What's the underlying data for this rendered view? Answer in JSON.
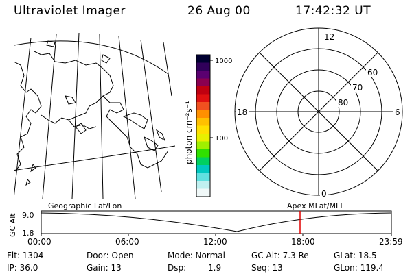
{
  "header": {
    "instrument": "Ultraviolet Imager",
    "date": "26 Aug 00",
    "time": "17:42:32 UT"
  },
  "colorbar": {
    "unit_label": "photon cm⁻²s⁻¹",
    "tick_1000": "1000",
    "tick_100": "100",
    "colors": [
      "#000030",
      "#30005a",
      "#5a0070",
      "#8a0050",
      "#c00010",
      "#e01010",
      "#f05020",
      "#ff9000",
      "#ffc000",
      "#ffe000",
      "#e8f000",
      "#a0f000",
      "#30e000",
      "#00d060",
      "#00c8c0",
      "#60e0e0",
      "#c0f0f0",
      "#f0f8f8"
    ]
  },
  "polar_plot": {
    "mlt_12": "12",
    "mlt_18": "18",
    "mlt_6": "6",
    "mlt_0": "0",
    "lat_60": "60",
    "lat_70": "70",
    "lat_80": "80"
  },
  "timeline": {
    "yaxis_label": "GC Alt",
    "ytick_top": "9.0",
    "ytick_bottom": "1.8",
    "left_label": "Geographic Lat/Lon",
    "right_label": "Apex MLat/MLT",
    "xticks": [
      "00:00",
      "06:00",
      "12:00",
      "18:00",
      "23:59"
    ],
    "current_marker_color": "#e00000"
  },
  "status": {
    "flt": "Flt: 1304",
    "ip": "IP: 36.0",
    "door": "Door: Open",
    "gain": "Gain: 13",
    "mode": "Mode: Normal",
    "dsp_label": "Dsp:",
    "dsp_value": "1.9",
    "gc_alt": "GC Alt: 7.3 Re",
    "seq": "Seq: 13",
    "glat": "GLat: 18.5",
    "glon": "GLon: 119.4"
  }
}
